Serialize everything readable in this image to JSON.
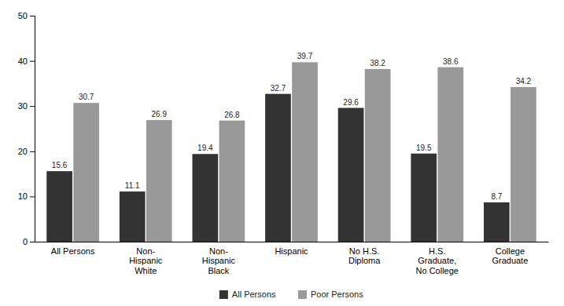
{
  "chart_data": {
    "type": "bar",
    "categories": [
      "All Persons",
      "Non-\nHispanic\nWhite",
      "Non-\nHispanic\nBlack",
      "Hispanic",
      "No H.S.\nDiploma",
      "H.S.\nGraduate,\nNo College",
      "College\nGraduate"
    ],
    "series": [
      {
        "name": "All Persons",
        "color": "#333333",
        "values": [
          15.6,
          11.1,
          19.4,
          32.7,
          29.6,
          19.5,
          8.7
        ]
      },
      {
        "name": "Poor Persons",
        "color": "#999999",
        "values": [
          30.7,
          26.9,
          26.8,
          39.7,
          38.2,
          38.6,
          34.2
        ]
      }
    ],
    "ylim": [
      0,
      50
    ],
    "yticks": [
      0,
      10,
      20,
      30,
      40,
      50
    ],
    "data_labels": true,
    "legend": "bottom",
    "grid": false
  }
}
